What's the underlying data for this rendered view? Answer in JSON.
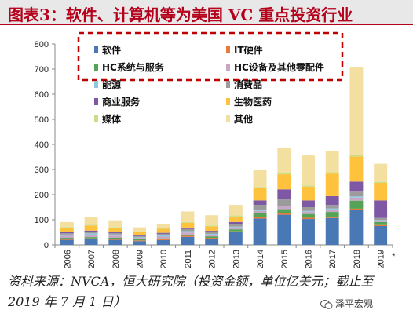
{
  "title": "图表3：软件、计算机等为美国 VC 重点投资行业",
  "source_note": "资料来源：NVCA，恒大研究院（投资金额，单位亿美元；截止至 2019 年 7 月 1 日）",
  "watermark": "泽平宏观",
  "colors": {
    "title": "#b5001b",
    "software": "#4a78b5",
    "it_hardware": "#e57b38",
    "hc_systems": "#55a356",
    "hc_devices": "#c9a6c6",
    "energy": "#8fc6e0",
    "consumer": "#9b9b9b",
    "business": "#7f58a5",
    "biotech": "#ffc23d",
    "media": "#c6e08a",
    "other": "#f3dfa0",
    "legend_border": "#c00000"
  },
  "chart_data": {
    "type": "bar",
    "stacked": true,
    "title": "",
    "xlabel": "",
    "ylabel": "",
    "ylim": [
      0,
      800
    ],
    "yticks": [
      0,
      100,
      200,
      300,
      400,
      500,
      600,
      700,
      800
    ],
    "grid": false,
    "legend_position": "top-left",
    "categories": [
      "2006",
      "2007",
      "2008",
      "2009",
      "2010",
      "2011",
      "2012",
      "2013",
      "2014",
      "2015",
      "2016",
      "2017",
      "2018",
      "2019"
    ],
    "category_notes": [
      "",
      "",
      "",
      "",
      "",
      "",
      "",
      "",
      "",
      "",
      "",
      "",
      "",
      "*"
    ],
    "series": [
      {
        "name": "软件",
        "color_key": "software",
        "values": [
          20,
          22,
          20,
          15,
          19,
          32,
          25,
          50,
          105,
          120,
          103,
          107,
          138,
          75
        ]
      },
      {
        "name": "IT硬件",
        "color_key": "it_hardware",
        "values": [
          4,
          4,
          4,
          3,
          3,
          4,
          3,
          4,
          6,
          6,
          5,
          5,
          6,
          4
        ]
      },
      {
        "name": "HC系统与服务",
        "color_key": "hc_systems",
        "values": [
          4,
          5,
          5,
          4,
          4,
          5,
          6,
          8,
          14,
          16,
          15,
          19,
          32,
          12
        ]
      },
      {
        "name": "HC设备及其他零配件",
        "color_key": "hc_devices",
        "values": [
          8,
          9,
          8,
          6,
          7,
          8,
          7,
          8,
          10,
          11,
          9,
          10,
          12,
          6
        ]
      },
      {
        "name": "能源",
        "color_key": "energy",
        "values": [
          5,
          6,
          5,
          3,
          5,
          6,
          3,
          3,
          4,
          3,
          3,
          4,
          5,
          2
        ]
      },
      {
        "name": "消费品",
        "color_key": "consumer",
        "values": [
          5,
          6,
          5,
          4,
          6,
          8,
          7,
          10,
          20,
          25,
          15,
          14,
          22,
          8
        ]
      },
      {
        "name": "商业服务",
        "color_key": "business",
        "values": [
          4,
          5,
          4,
          3,
          4,
          6,
          5,
          8,
          18,
          40,
          27,
          35,
          37,
          70
        ]
      },
      {
        "name": "生物医药",
        "color_key": "biotech",
        "values": [
          18,
          20,
          18,
          14,
          16,
          19,
          18,
          22,
          48,
          60,
          55,
          90,
          100,
          70
        ]
      },
      {
        "name": "媒体",
        "color_key": "media",
        "values": [
          3,
          3,
          2,
          2,
          3,
          3,
          3,
          4,
          5,
          5,
          4,
          5,
          6,
          4
        ]
      },
      {
        "name": "其他",
        "color_key": "other",
        "values": [
          20,
          30,
          27,
          16,
          15,
          42,
          41,
          42,
          68,
          102,
          120,
          86,
          349,
          72
        ]
      }
    ]
  }
}
